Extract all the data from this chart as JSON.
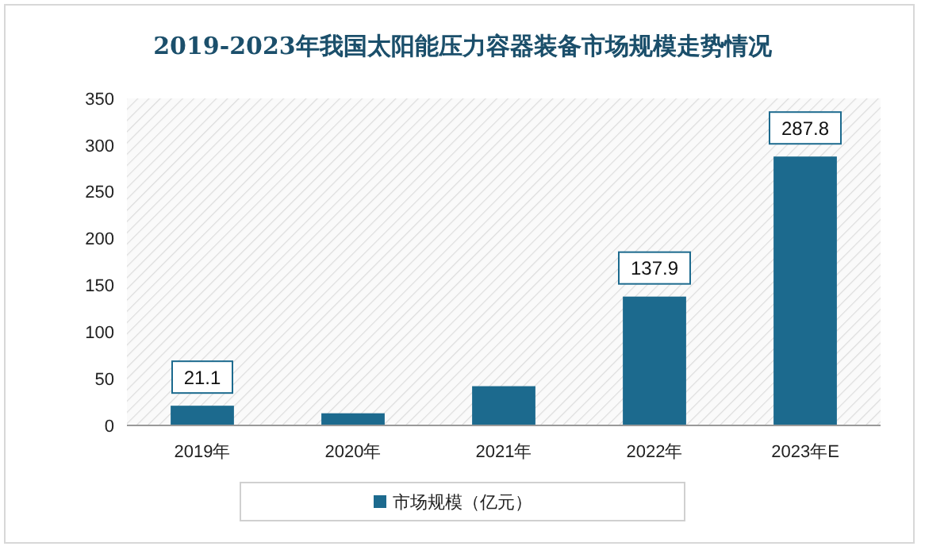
{
  "chart_data": {
    "type": "bar",
    "title": "2019-2023年我国太阳能压力容器装备市场规模走势情况",
    "categories": [
      "2019年",
      "2020年",
      "2021年",
      "2022年",
      "2023年E"
    ],
    "series": [
      {
        "name": "市场规模（亿元）",
        "color": "#1c6a8e",
        "values": [
          21.1,
          13,
          42,
          137.9,
          287.8
        ],
        "value_labels": [
          "21.1",
          null,
          null,
          "137.9",
          "287.8"
        ]
      }
    ],
    "ylim": [
      0,
      350
    ],
    "yticks": [
      0,
      50,
      100,
      150,
      200,
      250,
      300,
      350
    ],
    "grid": false,
    "legend": "bottom"
  }
}
